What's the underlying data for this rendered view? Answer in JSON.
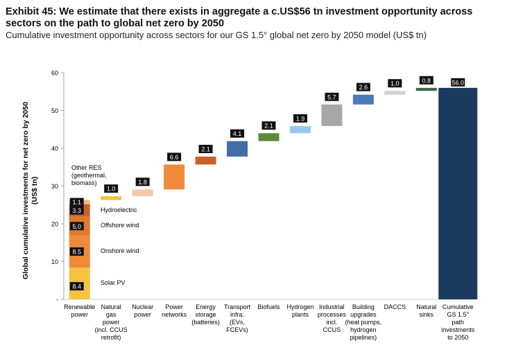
{
  "header": {
    "title": "Exhibit 45: We estimate that there exists in aggregate a c.US$56 tn investment opportunity across sectors on the path to global net zero by 2050",
    "subtitle": "Cumulative investment opportunity across sectors for our GS 1.5° global net zero by 2050 model (US$ tn)"
  },
  "chart_data": {
    "type": "bar",
    "subtype": "waterfall",
    "title": "Exhibit 45: We estimate that there exists in aggregate a c.US$56 tn investment opportunity across sectors on the path to global net zero by 2050",
    "subtitle": "Cumulative investment opportunity across sectors for our GS 1.5° global net zero by 2050 model (US$ tn)",
    "xlabel": "",
    "ylabel": "Global cumulative investments for net zero by 2050\n(US$ tn)",
    "ylim": [
      0,
      60
    ],
    "yticks": [
      "-",
      "10",
      "20",
      "30",
      "40",
      "50",
      "60"
    ],
    "grid": false,
    "legend": "none",
    "renewable_stack": {
      "category": "Renewable\npower",
      "segments": [
        {
          "name": "Solar PV",
          "value": 8.4,
          "label": "8.4",
          "color": "#f5c242"
        },
        {
          "name": "Onshore wind",
          "value": 8.5,
          "label": "8.5",
          "color": "#ef8a3a"
        },
        {
          "name": "Offshore wind",
          "value": 5.0,
          "label": "5.0",
          "color": "#e07a2e"
        },
        {
          "name": "Hydroelectric",
          "value": 3.3,
          "label": "3.3",
          "color": "#c8622a"
        },
        {
          "name": "Other RES\n(geothermal,\nbiomass)",
          "value": 1.1,
          "label": "1.1",
          "color": "#f3b97c"
        }
      ]
    },
    "steps": [
      {
        "category": "Natural\ngas\npower\n(incl. CCUS\nretrofit)",
        "value": 1.0,
        "label": "1.0",
        "color": "#f5c242"
      },
      {
        "category": "Nuclear\npower",
        "value": 1.8,
        "label": "1.8",
        "color": "#f6c9a6"
      },
      {
        "category": "Power\nnetworks",
        "value": 6.6,
        "label": "6.6",
        "color": "#ef8a3a"
      },
      {
        "category": "Energy\nstorage\n(batteries)",
        "value": 2.1,
        "label": "2.1",
        "color": "#c8622a"
      },
      {
        "category": "Transport\ninfra.\n(EVs,\nFCEVs)",
        "value": 4.1,
        "label": "4.1",
        "color": "#3f6fa5"
      },
      {
        "category": "Biofuels",
        "value": 2.1,
        "label": "2.1",
        "color": "#5b8a3c"
      },
      {
        "category": "Hydrogen\nplants",
        "value": 1.9,
        "label": "1.9",
        "color": "#9ac8ec"
      },
      {
        "category": "Industrial\nprocesses\nincl.\nCCUS",
        "value": 5.7,
        "label": "5.7",
        "color": "#a6a6a6"
      },
      {
        "category": "Building\nupgrades\n(heat pumps,\nhydrogen\npipelines)",
        "value": 2.6,
        "label": "2.6",
        "color": "#4a7ab8"
      },
      {
        "category": "DACCS",
        "value": 1.0,
        "label": "1.0",
        "color": "#d0d0d0"
      },
      {
        "category": "Natural\nsinks",
        "value": 0.8,
        "label": "0.8",
        "color": "#3d6b4a"
      }
    ],
    "total": {
      "category": "Cumulative\nGS 1.5°\npath\ninvestments\nto 2050",
      "value": 56.0,
      "label": "56.0",
      "color": "#1a3a5e"
    }
  }
}
